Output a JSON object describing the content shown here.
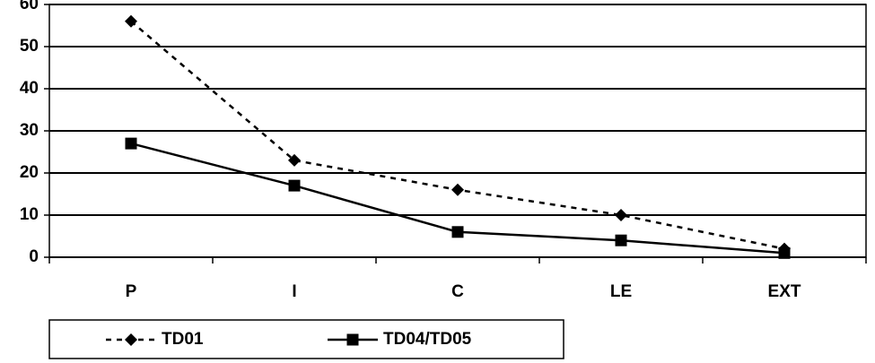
{
  "chart_data": {
    "type": "line",
    "categories": [
      "P",
      "I",
      "C",
      "LE",
      "EXT"
    ],
    "series": [
      {
        "name": "TD01",
        "color": "#000000",
        "line_style": "dashed",
        "marker": "diamond",
        "values": [
          56,
          23,
          16,
          10,
          2
        ]
      },
      {
        "name": "TD04/TD05",
        "color": "#000000",
        "line_style": "solid",
        "marker": "square",
        "values": [
          27,
          17,
          6,
          4,
          1
        ]
      }
    ],
    "ylim": [
      0,
      60
    ],
    "yticks": [
      0,
      10,
      20,
      30,
      40,
      50,
      60
    ],
    "grid": true,
    "legend": "bottom"
  }
}
